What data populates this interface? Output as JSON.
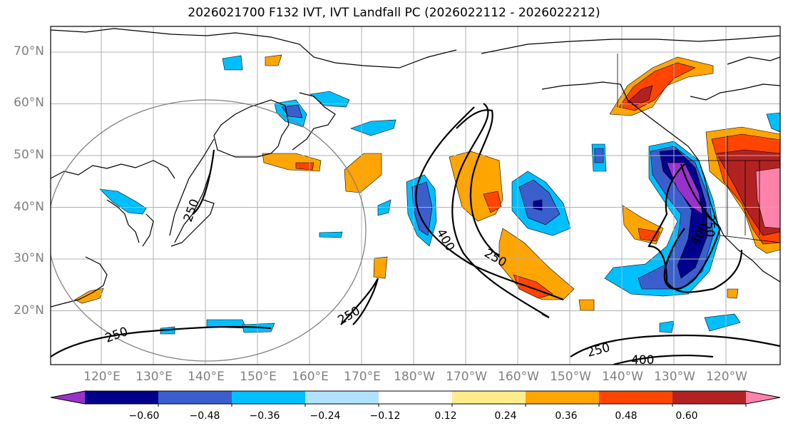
{
  "title": "2026021700 F132 IVT, IVT Landfall PC (2026022112 - 2026022212)",
  "lat_labels": [
    "70°N",
    "60°N",
    "50°N",
    "40°N",
    "30°N",
    "20°N"
  ],
  "lon_labels": [
    "120°E",
    "130°E",
    "140°E",
    "150°E",
    "160°E",
    "170°E",
    "180°W",
    "170°W",
    "160°W",
    "150°W",
    "140°W",
    "130°W",
    "120°W"
  ],
  "contour_labels": [
    "250",
    "400",
    "250",
    "250",
    "400",
    "250",
    "250",
    "400",
    "250"
  ],
  "colorbar": {
    "ticks": [
      "−0.60",
      "−0.48",
      "−0.36",
      "−0.24",
      "−0.12",
      "0.12",
      "0.24",
      "0.36",
      "0.48",
      "0.60"
    ],
    "colors": [
      "#9932cc",
      "#00008b",
      "#3a5fcd",
      "#00bfff",
      "#b0e2ff",
      "#ffffff",
      "#ffec8b",
      "#ffa500",
      "#ff4500",
      "#b22222",
      "#ff82ab"
    ]
  }
}
